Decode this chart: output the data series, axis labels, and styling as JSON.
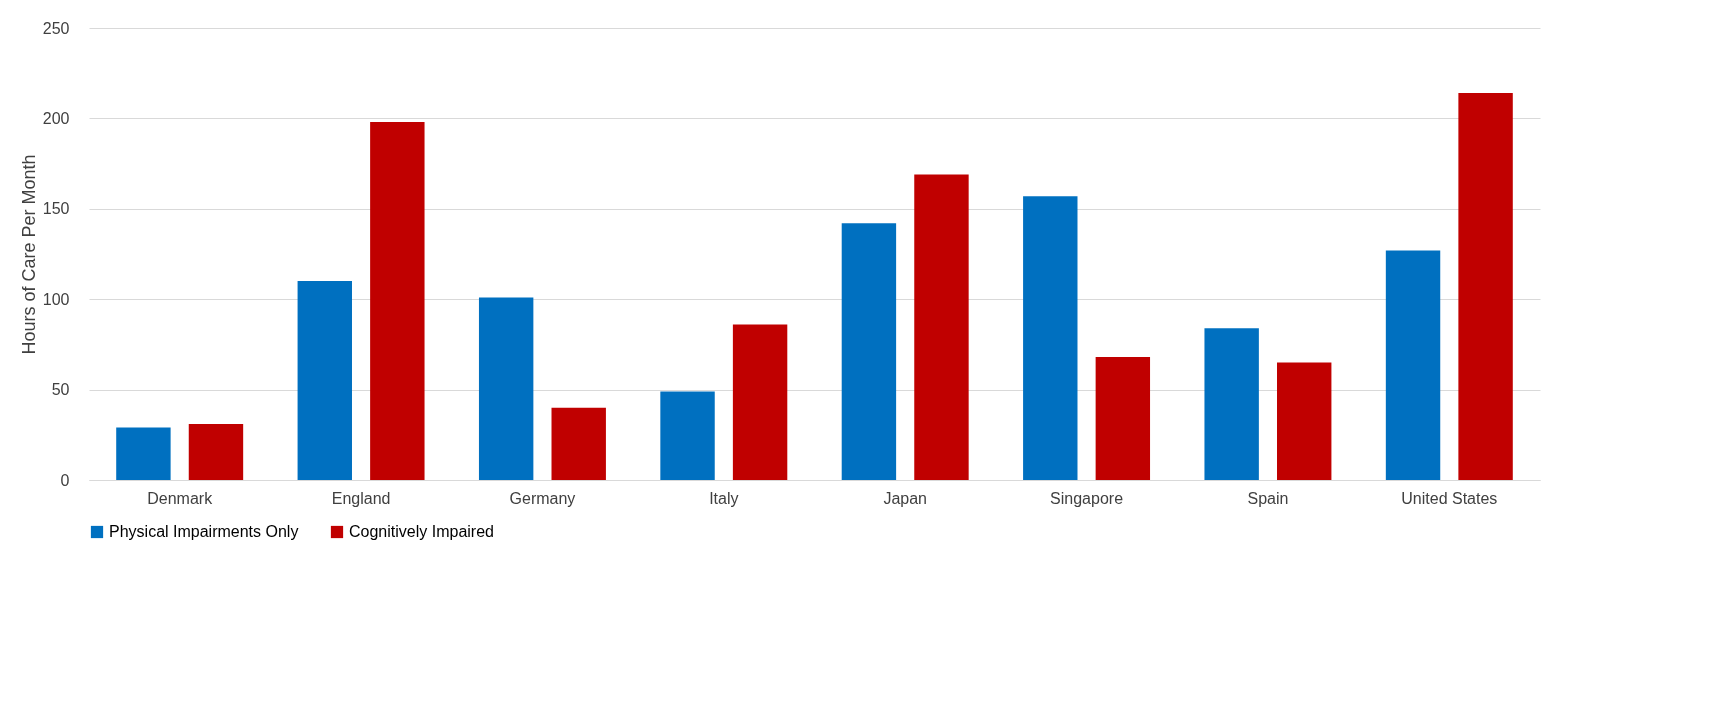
{
  "chart_data": {
    "type": "bar",
    "ylabel": "Hours of Care Per Month",
    "categories": [
      "Denmark",
      "England",
      "Germany",
      "Italy",
      "Japan",
      "Singapore",
      "Spain",
      "United States"
    ],
    "series": [
      {
        "name": "Physical Impairments Only",
        "color": "#0070c0",
        "values": [
          29,
          110,
          101,
          49,
          142,
          157,
          84,
          127
        ]
      },
      {
        "name": "Cognitively Impaired",
        "color": "#c00000",
        "values": [
          31,
          198,
          40,
          86,
          169,
          68,
          65,
          214
        ]
      }
    ],
    "ylim": [
      0,
      250
    ],
    "yticks": [
      0,
      50,
      100,
      150,
      200,
      250
    ],
    "grid": "y",
    "legend": "bottom"
  }
}
